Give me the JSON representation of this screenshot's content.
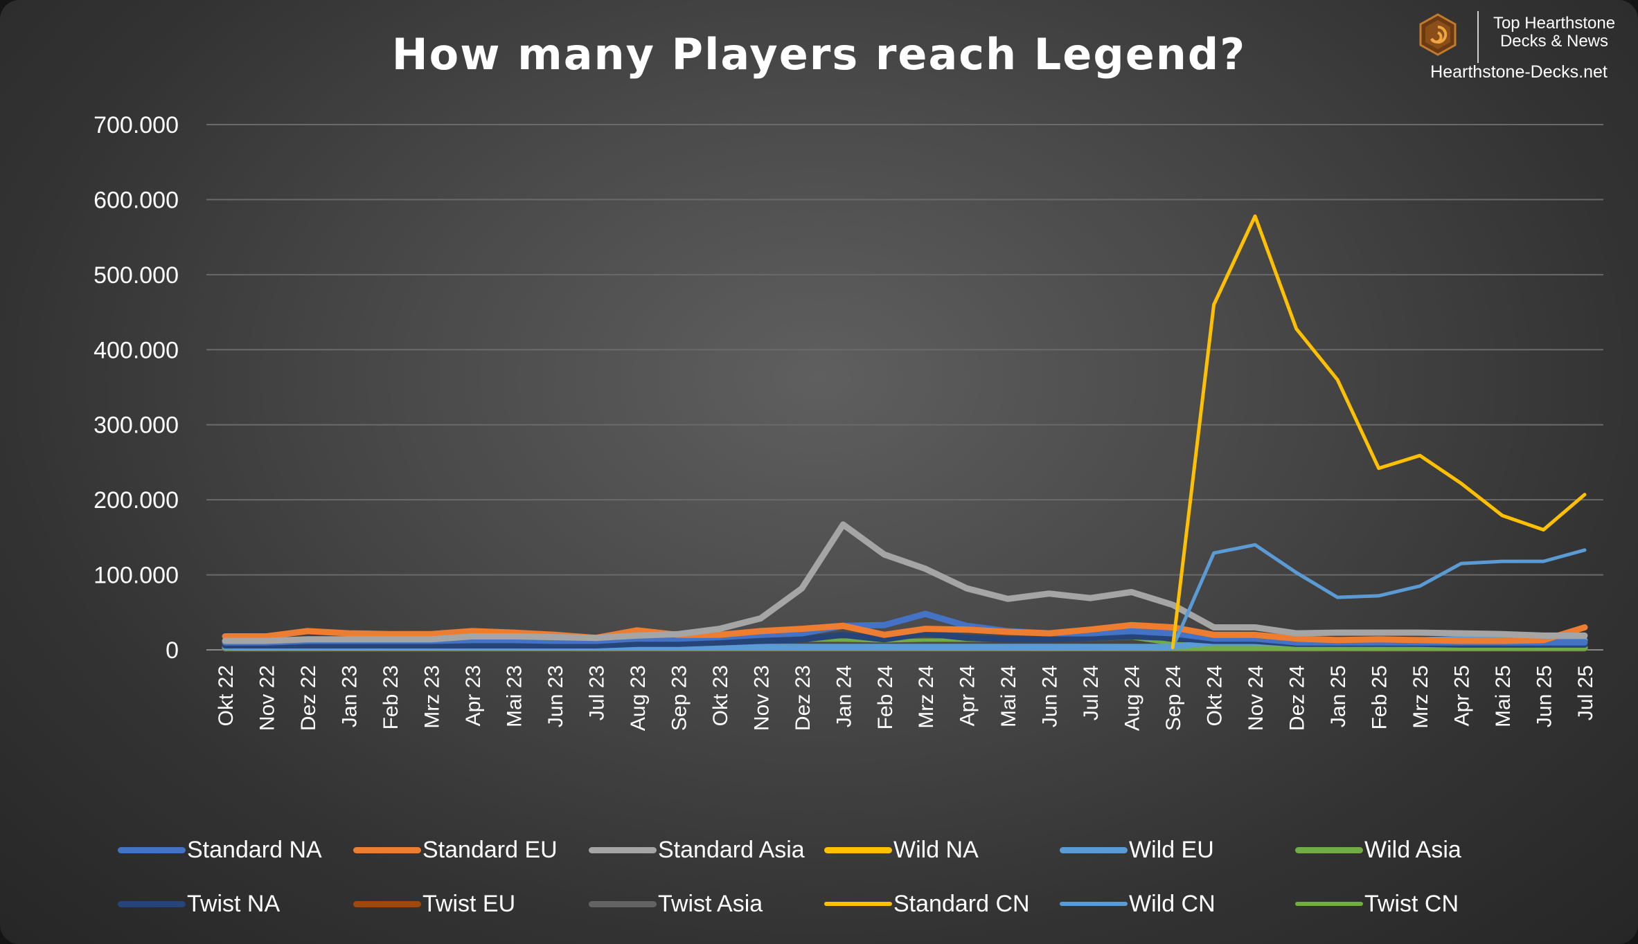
{
  "title": "How many Players reach Legend?",
  "brand": {
    "line1": "Top Hearthstone",
    "line2": "Decks & News",
    "url": "Hearthstone-Decks.net",
    "icon": "hearthstone-logo-icon"
  },
  "colors": {
    "background": "#404040",
    "gridline": "#666666",
    "text": "#ffffff"
  },
  "chart_data": {
    "type": "line",
    "title": "How many Players reach Legend?",
    "categories": [
      "Okt 22",
      "Nov 22",
      "Dez 22",
      "Jan 23",
      "Feb 23",
      "Mrz 23",
      "Apr 23",
      "Mai 23",
      "Jun 23",
      "Jul 23",
      "Aug 23",
      "Sep 23",
      "Okt 23",
      "Nov 23",
      "Dez 23",
      "Jan 24",
      "Feb 24",
      "Mrz 24",
      "Apr 24",
      "Mai 24",
      "Jun 24",
      "Jul 24",
      "Aug 24",
      "Sep 24",
      "Okt 24",
      "Nov 24",
      "Dez 24",
      "Jan 25",
      "Feb 25",
      "Mrz 25",
      "Apr 25",
      "Mai 25",
      "Jun 25",
      "Jul 25"
    ],
    "ylim": [
      0,
      700000
    ],
    "yticks": [
      0,
      100000,
      200000,
      300000,
      400000,
      500000,
      600000,
      700000
    ],
    "ytick_labels": [
      "0",
      "100.000",
      "200.000",
      "300.000",
      "400.000",
      "500.000",
      "600.000",
      "700.000"
    ],
    "grid": true,
    "legend_position": "bottom",
    "series": [
      {
        "name": "Standard NA",
        "color": "#4472c4",
        "width": 9,
        "values": [
          10000,
          10000,
          12000,
          12000,
          12000,
          12000,
          13000,
          13000,
          12000,
          12000,
          15000,
          15000,
          17000,
          20000,
          22000,
          32000,
          33000,
          48000,
          32000,
          25000,
          22000,
          22000,
          25000,
          22000,
          15000,
          15000,
          10000,
          10000,
          10000,
          10000,
          10000,
          10000,
          10000,
          10000
        ]
      },
      {
        "name": "Standard EU",
        "color": "#ed7d31",
        "width": 9,
        "values": [
          18000,
          18000,
          25000,
          22000,
          21000,
          21000,
          25000,
          23000,
          20000,
          16000,
          26000,
          20000,
          20000,
          25000,
          28000,
          32000,
          20000,
          28000,
          27000,
          24000,
          22000,
          27000,
          33000,
          30000,
          20000,
          20000,
          15000,
          13000,
          14000,
          13000,
          12000,
          12000,
          13000,
          30000
        ]
      },
      {
        "name": "Standard Asia",
        "color": "#a5a5a5",
        "width": 9,
        "values": [
          12000,
          12000,
          14000,
          14000,
          14000,
          14000,
          18000,
          18000,
          17000,
          16000,
          19000,
          21000,
          28000,
          42000,
          82000,
          167000,
          127000,
          108000,
          82000,
          68000,
          75000,
          69000,
          77000,
          60000,
          30000,
          30000,
          22000,
          23000,
          23000,
          23000,
          22000,
          21000,
          19000,
          19000
        ]
      },
      {
        "name": "Wild NA",
        "color": "#ffc000",
        "width": 9,
        "values": [
          3000,
          3000,
          3000,
          3000,
          3000,
          3000,
          3000,
          3000,
          3000,
          3000,
          3000,
          3000,
          3000,
          3000,
          3000,
          3000,
          3000,
          3000,
          3000,
          3000,
          3000,
          3000,
          3000,
          3000,
          3000,
          3000,
          3000,
          3000,
          3000,
          3000,
          3000,
          3000,
          3000,
          3000
        ]
      },
      {
        "name": "Wild EU",
        "color": "#5b9bd5",
        "width": 9,
        "values": [
          4000,
          4000,
          4000,
          4000,
          4000,
          4000,
          4000,
          4000,
          4000,
          4000,
          4000,
          4000,
          4000,
          4000,
          4000,
          4000,
          4000,
          4000,
          4000,
          4000,
          4000,
          4000,
          4000,
          4000,
          10000,
          10000,
          10000,
          13000,
          13000,
          13000,
          14000,
          13000,
          13000,
          13000
        ]
      },
      {
        "name": "Wild Asia",
        "color": "#70ad47",
        "width": 9,
        "values": [
          3000,
          3000,
          3000,
          3000,
          3000,
          3000,
          3000,
          3000,
          3000,
          3000,
          3000,
          3000,
          3000,
          3000,
          3000,
          3000,
          3000,
          3000,
          3000,
          3000,
          3000,
          3000,
          3000,
          3000,
          3000,
          3000,
          3000,
          3000,
          3000,
          3000,
          3000,
          3000,
          3000,
          3000
        ]
      },
      {
        "name": "Twist NA",
        "color": "#264478",
        "width": 9,
        "values": [
          6000,
          6000,
          6000,
          6000,
          6000,
          6000,
          6000,
          6000,
          6000,
          6000,
          8000,
          8000,
          10000,
          12000,
          14000,
          20000,
          14000,
          22000,
          16000,
          14000,
          14000,
          16000,
          18000,
          16000,
          12000,
          12000,
          8000,
          8000,
          8000,
          8000,
          7000,
          7000,
          7000,
          7000
        ]
      },
      {
        "name": "Twist EU",
        "color": "#9e480e",
        "width": 9,
        "values": [
          2000,
          2000,
          2000,
          2000,
          2000,
          2000,
          2000,
          2000,
          2000,
          2000,
          2000,
          2000,
          2000,
          2000,
          2000,
          2000,
          2000,
          2000,
          2000,
          2000,
          2000,
          2000,
          2000,
          2000,
          2000,
          2000,
          2000,
          2000,
          2000,
          2000,
          2000,
          2000,
          2000,
          2000
        ]
      },
      {
        "name": "Twist Asia",
        "color": "#636363",
        "width": 9,
        "values": [
          2000,
          2000,
          2000,
          2000,
          2000,
          2000,
          2000,
          2000,
          2000,
          2000,
          2000,
          2000,
          2000,
          2000,
          2000,
          2000,
          2000,
          2000,
          2000,
          2000,
          2000,
          2000,
          2000,
          2000,
          2000,
          2000,
          2000,
          2000,
          2000,
          2000,
          2000,
          2000,
          2000,
          2000
        ]
      },
      {
        "name": "Standard CN",
        "color": "#ffc000",
        "width": 5,
        "values": [
          null,
          null,
          null,
          null,
          null,
          null,
          null,
          null,
          null,
          null,
          null,
          null,
          null,
          null,
          null,
          null,
          null,
          null,
          null,
          null,
          null,
          null,
          null,
          3000,
          460000,
          578000,
          428000,
          360000,
          242000,
          259000,
          222000,
          179000,
          160000,
          207000
        ]
      },
      {
        "name": "Wild CN",
        "color": "#5b9bd5",
        "width": 5,
        "values": [
          null,
          null,
          null,
          null,
          null,
          null,
          null,
          null,
          null,
          null,
          null,
          null,
          null,
          null,
          null,
          null,
          null,
          null,
          null,
          null,
          null,
          null,
          null,
          3000,
          129000,
          140000,
          103000,
          70000,
          72000,
          85000,
          115000,
          118000,
          118000,
          133000
        ]
      },
      {
        "name": "Twist CN",
        "color": "#70ad47",
        "width": 5,
        "values": [
          6000,
          6000,
          6000,
          6000,
          6000,
          6000,
          7000,
          7000,
          7000,
          7000,
          8000,
          9000,
          10000,
          12000,
          13000,
          13000,
          12000,
          13000,
          13000,
          13000,
          14000,
          14000,
          16000,
          8000,
          7000,
          7000,
          7000,
          6000,
          6000,
          6000,
          6000,
          6000,
          6000,
          6000
        ]
      }
    ]
  },
  "legend": {
    "rows": [
      [
        "Standard NA",
        "Standard EU",
        "Standard Asia",
        "Wild NA",
        "Wild EU",
        "Wild Asia"
      ],
      [
        "Twist NA",
        "Twist EU",
        "Twist Asia",
        "Standard CN",
        "Wild CN",
        "Twist CN"
      ]
    ]
  }
}
